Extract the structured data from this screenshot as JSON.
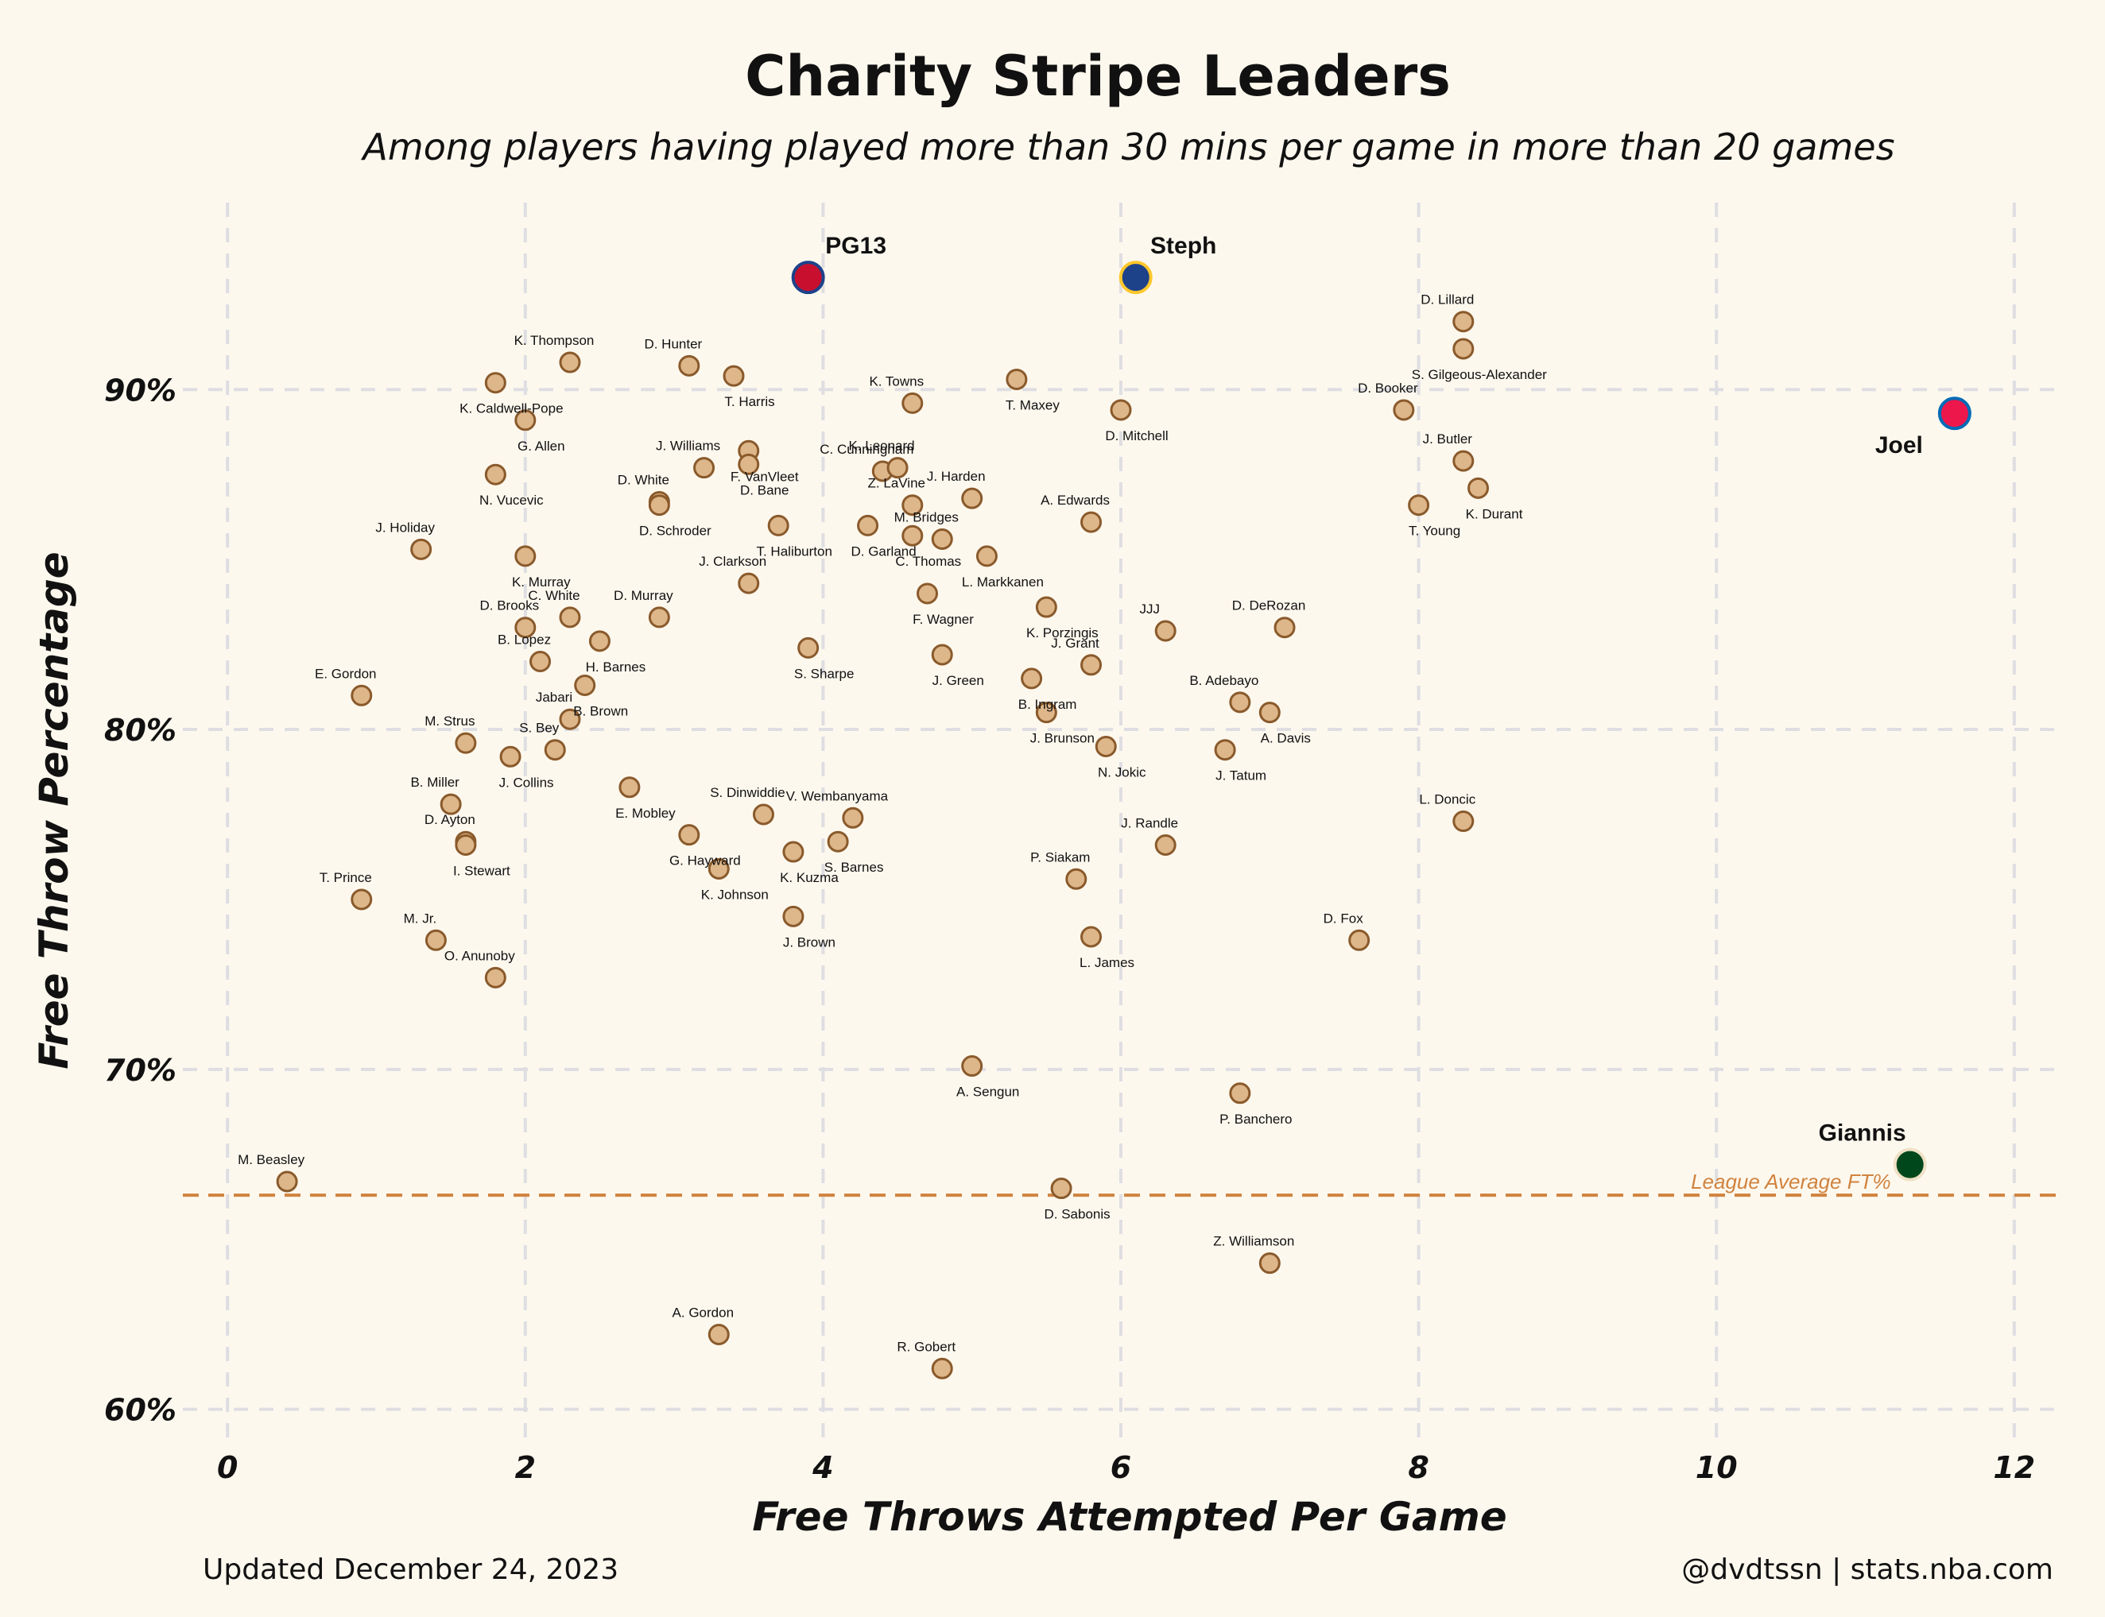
{
  "chart_data": {
    "type": "scatter",
    "title": "Charity Stripe Leaders",
    "subtitle": "Among players having played more than 30 mins per game in more than 20 games",
    "xlabel": "Free Throws Attempted Per Game",
    "ylabel": "Free Throw Percentage",
    "xlim": [
      -0.3,
      12.3
    ],
    "ylim": [
      59.5,
      95.5
    ],
    "xticks": [
      0,
      2,
      4,
      6,
      8,
      10,
      12
    ],
    "yticks": [
      60,
      70,
      80,
      90
    ],
    "ytick_labels": [
      "60%",
      "70%",
      "80%",
      "90%"
    ],
    "grid": true,
    "reference_line": {
      "value": 66.3,
      "label": "League Average FT%"
    },
    "footer_left": "Updated December 24, 2023",
    "footer_right": "@dvdtssn | stats.nba.com",
    "colors": {
      "background": "#fdf8ee",
      "point_fill": "#ddb68a",
      "point_edge": "#8a5a2b",
      "reference_line": "#d0833f",
      "grid": "#dedee2"
    },
    "points": [
      {
        "name": "D. Lillard",
        "x": 8.3,
        "y": 92.0,
        "pos": "a"
      },
      {
        "name": "S. Gilgeous-Alexander",
        "x": 8.3,
        "y": 91.2,
        "pos": "b"
      },
      {
        "name": "D. Booker",
        "x": 7.9,
        "y": 89.4,
        "pos": "a"
      },
      {
        "name": "J. Butler",
        "x": 8.3,
        "y": 87.9,
        "pos": "a"
      },
      {
        "name": "K. Durant",
        "x": 8.4,
        "y": 87.1,
        "pos": "b"
      },
      {
        "name": "T. Young",
        "x": 8.0,
        "y": 86.6,
        "pos": "b"
      },
      {
        "name": "K. Thompson",
        "x": 2.3,
        "y": 90.8,
        "pos": "a"
      },
      {
        "name": "K. Caldwell-Pope",
        "x": 1.8,
        "y": 90.2,
        "pos": "b"
      },
      {
        "name": "G. Allen",
        "x": 2.0,
        "y": 89.1,
        "pos": "b"
      },
      {
        "name": "N. Vucevic",
        "x": 1.8,
        "y": 87.5,
        "pos": "b"
      },
      {
        "name": "J. Holiday",
        "x": 1.3,
        "y": 85.3,
        "pos": "a"
      },
      {
        "name": "K. Murray",
        "x": 2.0,
        "y": 85.1,
        "pos": "b"
      },
      {
        "name": "D. Hunter",
        "x": 3.1,
        "y": 90.7,
        "pos": "a"
      },
      {
        "name": "T. Harris",
        "x": 3.4,
        "y": 90.4,
        "pos": "b"
      },
      {
        "name": "J. Williams",
        "x": 3.2,
        "y": 87.7,
        "pos": "a"
      },
      {
        "name": "D. White",
        "x": 2.9,
        "y": 86.7,
        "pos": "a"
      },
      {
        "name": "D. Schroder",
        "x": 2.9,
        "y": 86.6,
        "pos": "b"
      },
      {
        "name": "F. VanVleet",
        "x": 3.5,
        "y": 88.2,
        "pos": "b"
      },
      {
        "name": "D. Bane",
        "x": 3.5,
        "y": 87.8,
        "pos": "b"
      },
      {
        "name": "T. Haliburton",
        "x": 3.7,
        "y": 86.0,
        "pos": "b"
      },
      {
        "name": "J. Clarkson",
        "x": 3.5,
        "y": 84.3,
        "pos": "a"
      },
      {
        "name": "C. Cunningham",
        "x": 4.4,
        "y": 87.6,
        "pos": "a"
      },
      {
        "name": "K. Leonard",
        "x": 4.5,
        "y": 87.7,
        "pos": "a"
      },
      {
        "name": "K. Towns",
        "x": 4.6,
        "y": 89.6,
        "pos": "a"
      },
      {
        "name": "T. Maxey",
        "x": 5.3,
        "y": 90.3,
        "pos": "b"
      },
      {
        "name": "D. Mitchell",
        "x": 6.0,
        "y": 89.4,
        "pos": "b"
      },
      {
        "name": "Z. LaVine",
        "x": 4.6,
        "y": 86.6,
        "pos": "a"
      },
      {
        "name": "J. Harden",
        "x": 5.0,
        "y": 86.8,
        "pos": "a"
      },
      {
        "name": "M. Bridges",
        "x": 4.8,
        "y": 85.6,
        "pos": "a"
      },
      {
        "name": "C. Thomas",
        "x": 4.6,
        "y": 85.7,
        "pos": "b"
      },
      {
        "name": "L. Markkanen",
        "x": 5.1,
        "y": 85.1,
        "pos": "b"
      },
      {
        "name": "A. Edwards",
        "x": 5.8,
        "y": 86.1,
        "pos": "a"
      },
      {
        "name": "D. Garland",
        "x": 4.3,
        "y": 86.0,
        "pos": "b"
      },
      {
        "name": "F. Wagner",
        "x": 4.7,
        "y": 84.0,
        "pos": "b"
      },
      {
        "name": "K. Porzingis",
        "x": 5.5,
        "y": 83.6,
        "pos": "b"
      },
      {
        "name": "JJJ",
        "x": 6.3,
        "y": 82.9,
        "pos": "a"
      },
      {
        "name": "D. DeRozan",
        "x": 7.1,
        "y": 83.0,
        "pos": "a"
      },
      {
        "name": "J. Grant",
        "x": 5.8,
        "y": 81.9,
        "pos": "a"
      },
      {
        "name": "J. Green",
        "x": 4.8,
        "y": 82.2,
        "pos": "b"
      },
      {
        "name": "B. Ingram",
        "x": 5.4,
        "y": 81.5,
        "pos": "b"
      },
      {
        "name": "J. Brunson",
        "x": 5.5,
        "y": 80.5,
        "pos": "b"
      },
      {
        "name": "N. Jokic",
        "x": 5.9,
        "y": 79.5,
        "pos": "b"
      },
      {
        "name": "B. Adebayo",
        "x": 6.8,
        "y": 80.8,
        "pos": "a"
      },
      {
        "name": "A. Davis",
        "x": 7.0,
        "y": 80.5,
        "pos": "b"
      },
      {
        "name": "J. Tatum",
        "x": 6.7,
        "y": 79.4,
        "pos": "b"
      },
      {
        "name": "S. Sharpe",
        "x": 3.9,
        "y": 82.4,
        "pos": "b"
      },
      {
        "name": "C. White",
        "x": 2.3,
        "y": 83.3,
        "pos": "a"
      },
      {
        "name": "D. Murray",
        "x": 2.9,
        "y": 83.3,
        "pos": "a"
      },
      {
        "name": "D. Brooks",
        "x": 2.0,
        "y": 83.0,
        "pos": "a"
      },
      {
        "name": "B. Lopez",
        "x": 2.1,
        "y": 82.0,
        "pos": "a"
      },
      {
        "name": "H. Barnes",
        "x": 2.5,
        "y": 82.6,
        "pos": "b"
      },
      {
        "name": "B. Brown",
        "x": 2.4,
        "y": 81.3,
        "pos": "b"
      },
      {
        "name": "Jabari",
        "x": 2.3,
        "y": 80.3,
        "pos": "a"
      },
      {
        "name": "S. Bey",
        "x": 2.2,
        "y": 79.4,
        "pos": "a"
      },
      {
        "name": "E. Gordon",
        "x": 0.9,
        "y": 81.0,
        "pos": "a"
      },
      {
        "name": "M. Strus",
        "x": 1.6,
        "y": 79.6,
        "pos": "a"
      },
      {
        "name": "J. Collins",
        "x": 1.9,
        "y": 79.2,
        "pos": "b"
      },
      {
        "name": "B. Miller",
        "x": 1.5,
        "y": 77.8,
        "pos": "a"
      },
      {
        "name": "D. Ayton",
        "x": 1.6,
        "y": 76.7,
        "pos": "a"
      },
      {
        "name": "I. Stewart",
        "x": 1.6,
        "y": 76.6,
        "pos": "b"
      },
      {
        "name": "T. Prince",
        "x": 0.9,
        "y": 75.0,
        "pos": "a"
      },
      {
        "name": "M. Jr.",
        "x": 1.4,
        "y": 73.8,
        "pos": "a"
      },
      {
        "name": "O. Anunoby",
        "x": 1.8,
        "y": 72.7,
        "pos": "a"
      },
      {
        "name": "E. Mobley",
        "x": 2.7,
        "y": 78.3,
        "pos": "b"
      },
      {
        "name": "G. Hayward",
        "x": 3.1,
        "y": 76.9,
        "pos": "b"
      },
      {
        "name": "S. Dinwiddie",
        "x": 3.6,
        "y": 77.5,
        "pos": "a"
      },
      {
        "name": "V. Wembanyama",
        "x": 4.2,
        "y": 77.4,
        "pos": "a"
      },
      {
        "name": "S. Barnes",
        "x": 4.1,
        "y": 76.7,
        "pos": "b"
      },
      {
        "name": "K. Kuzma",
        "x": 3.8,
        "y": 76.4,
        "pos": "b"
      },
      {
        "name": "K. Johnson",
        "x": 3.3,
        "y": 75.9,
        "pos": "b"
      },
      {
        "name": "J. Brown",
        "x": 3.8,
        "y": 74.5,
        "pos": "b"
      },
      {
        "name": "J. Randle",
        "x": 6.3,
        "y": 76.6,
        "pos": "a"
      },
      {
        "name": "P. Siakam",
        "x": 5.7,
        "y": 75.6,
        "pos": "a"
      },
      {
        "name": "L. James",
        "x": 5.8,
        "y": 73.9,
        "pos": "b"
      },
      {
        "name": "L. Doncic",
        "x": 8.3,
        "y": 77.3,
        "pos": "a"
      },
      {
        "name": "D. Fox",
        "x": 7.6,
        "y": 73.8,
        "pos": "a"
      },
      {
        "name": "A. Sengun",
        "x": 5.0,
        "y": 70.1,
        "pos": "b"
      },
      {
        "name": "P. Banchero",
        "x": 6.8,
        "y": 69.3,
        "pos": "b"
      },
      {
        "name": "M. Beasley",
        "x": 0.4,
        "y": 66.7,
        "pos": "a"
      },
      {
        "name": "D. Sabonis",
        "x": 5.6,
        "y": 66.5,
        "pos": "b"
      },
      {
        "name": "Z. Williamson",
        "x": 7.0,
        "y": 64.3,
        "pos": "a"
      },
      {
        "name": "A. Gordon",
        "x": 3.3,
        "y": 62.2,
        "pos": "a"
      },
      {
        "name": "R. Gobert",
        "x": 4.8,
        "y": 61.2,
        "pos": "a"
      }
    ],
    "highlights": [
      {
        "name": "PG13",
        "x": 3.9,
        "y": 93.3,
        "fill": "#c8102e",
        "edge": "#1d428a",
        "pos": "a"
      },
      {
        "name": "Steph",
        "x": 6.1,
        "y": 93.3,
        "fill": "#1d428a",
        "edge": "#ffc72c",
        "pos": "a"
      },
      {
        "name": "Joel",
        "x": 11.6,
        "y": 89.3,
        "fill": "#ed174c",
        "edge": "#006bb6",
        "pos": "b"
      },
      {
        "name": "Giannis",
        "x": 11.3,
        "y": 67.2,
        "fill": "#00471b",
        "edge": "#eee1c6",
        "pos": "a"
      }
    ]
  }
}
